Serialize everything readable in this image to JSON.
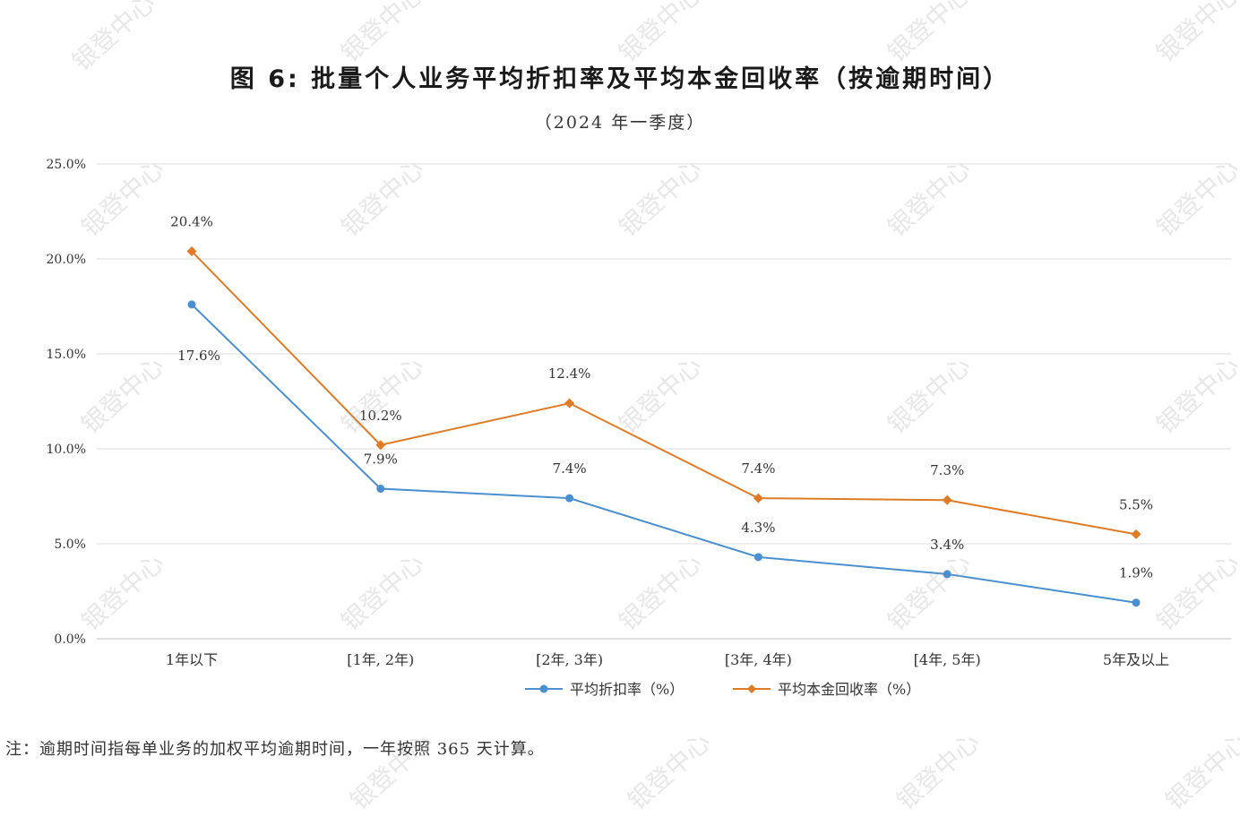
{
  "title": "图 6:  批量个人业务平均折扣率及平均本金回收率（按逾期时间）",
  "subtitle": "（2024 年一季度）",
  "note": "注：逾期时间指每单业务的加权平均逾期时间，一年按照 365 天计算。",
  "watermark": "银登中心",
  "chart_data": {
    "type": "line",
    "categories": [
      "1年以下",
      "[1年, 2年)",
      "[2年, 3年)",
      "[3年, 4年)",
      "[4年, 5年)",
      "5年及以上"
    ],
    "ylim": [
      0,
      25
    ],
    "yticks": [
      "0.0%",
      "5.0%",
      "10.0%",
      "15.0%",
      "20.0%",
      "25.0%"
    ],
    "grid": true,
    "legend_position": "bottom",
    "series": [
      {
        "name": "平均折扣率（%）",
        "color": "#4a8fd0",
        "marker": "circle",
        "values": [
          17.6,
          7.9,
          7.4,
          4.3,
          3.4,
          1.9
        ],
        "labels": [
          "17.6%",
          "7.9%",
          "7.4%",
          "4.3%",
          "3.4%",
          "1.9%"
        ]
      },
      {
        "name": "平均本金回收率（%）",
        "color": "#e07b25",
        "marker": "diamond",
        "values": [
          20.4,
          10.2,
          12.4,
          7.4,
          7.3,
          5.5
        ],
        "labels": [
          "20.4%",
          "10.2%",
          "12.4%",
          "7.4%",
          "7.3%",
          "5.5%"
        ]
      }
    ]
  }
}
